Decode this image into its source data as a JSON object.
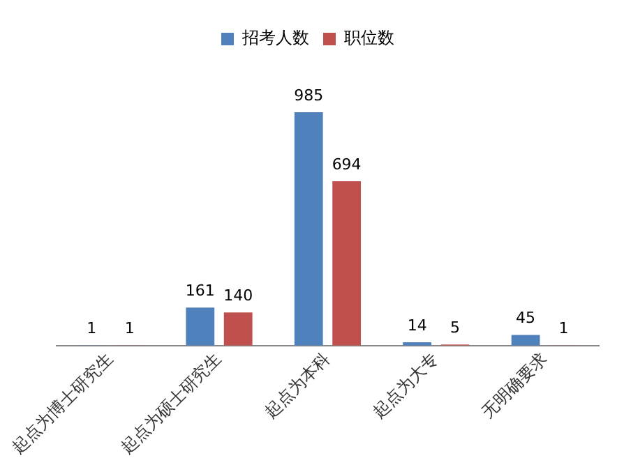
{
  "chart_data": {
    "type": "bar",
    "categories": [
      "起点为博士研究生",
      "起点为硕士研究生",
      "起点为本科",
      "起点为大专",
      "无明确要求"
    ],
    "series": [
      {
        "name": "招考人数",
        "color": "#4f81bd",
        "values": [
          1,
          161,
          985,
          14,
          45
        ]
      },
      {
        "name": "职位数",
        "color": "#c0504d",
        "values": [
          1,
          140,
          694,
          5,
          1
        ]
      }
    ],
    "tick_labels": "x",
    "data_labels": true,
    "legend": "top",
    "grid": false
  }
}
